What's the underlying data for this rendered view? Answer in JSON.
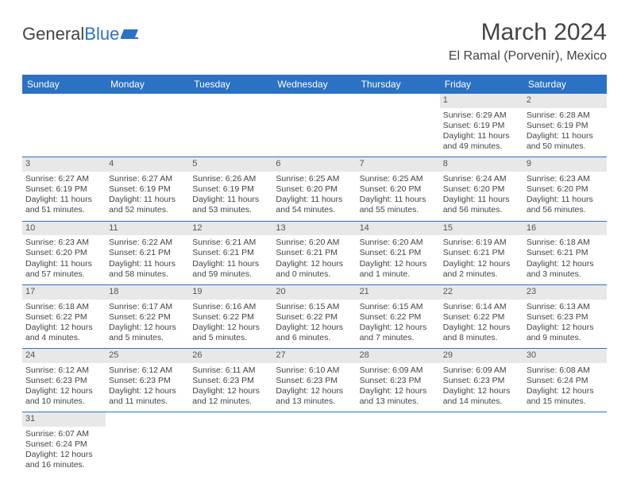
{
  "logo": {
    "general": "General",
    "blue": "Blue"
  },
  "title": "March 2024",
  "subtitle": "El Ramal (Porvenir), Mexico",
  "colors": {
    "header_bg": "#2b72c4",
    "header_fg": "#ffffff",
    "daynum_bg": "#e8e8e8",
    "border": "#2b72c4",
    "text": "#444444"
  },
  "dayNames": [
    "Sunday",
    "Monday",
    "Tuesday",
    "Wednesday",
    "Thursday",
    "Friday",
    "Saturday"
  ],
  "weeks": [
    [
      null,
      null,
      null,
      null,
      null,
      {
        "n": "1",
        "sr": "Sunrise: 6:29 AM",
        "ss": "Sunset: 6:19 PM",
        "d1": "Daylight: 11 hours",
        "d2": "and 49 minutes."
      },
      {
        "n": "2",
        "sr": "Sunrise: 6:28 AM",
        "ss": "Sunset: 6:19 PM",
        "d1": "Daylight: 11 hours",
        "d2": "and 50 minutes."
      }
    ],
    [
      {
        "n": "3",
        "sr": "Sunrise: 6:27 AM",
        "ss": "Sunset: 6:19 PM",
        "d1": "Daylight: 11 hours",
        "d2": "and 51 minutes."
      },
      {
        "n": "4",
        "sr": "Sunrise: 6:27 AM",
        "ss": "Sunset: 6:19 PM",
        "d1": "Daylight: 11 hours",
        "d2": "and 52 minutes."
      },
      {
        "n": "5",
        "sr": "Sunrise: 6:26 AM",
        "ss": "Sunset: 6:19 PM",
        "d1": "Daylight: 11 hours",
        "d2": "and 53 minutes."
      },
      {
        "n": "6",
        "sr": "Sunrise: 6:25 AM",
        "ss": "Sunset: 6:20 PM",
        "d1": "Daylight: 11 hours",
        "d2": "and 54 minutes."
      },
      {
        "n": "7",
        "sr": "Sunrise: 6:25 AM",
        "ss": "Sunset: 6:20 PM",
        "d1": "Daylight: 11 hours",
        "d2": "and 55 minutes."
      },
      {
        "n": "8",
        "sr": "Sunrise: 6:24 AM",
        "ss": "Sunset: 6:20 PM",
        "d1": "Daylight: 11 hours",
        "d2": "and 56 minutes."
      },
      {
        "n": "9",
        "sr": "Sunrise: 6:23 AM",
        "ss": "Sunset: 6:20 PM",
        "d1": "Daylight: 11 hours",
        "d2": "and 56 minutes."
      }
    ],
    [
      {
        "n": "10",
        "sr": "Sunrise: 6:23 AM",
        "ss": "Sunset: 6:20 PM",
        "d1": "Daylight: 11 hours",
        "d2": "and 57 minutes."
      },
      {
        "n": "11",
        "sr": "Sunrise: 6:22 AM",
        "ss": "Sunset: 6:21 PM",
        "d1": "Daylight: 11 hours",
        "d2": "and 58 minutes."
      },
      {
        "n": "12",
        "sr": "Sunrise: 6:21 AM",
        "ss": "Sunset: 6:21 PM",
        "d1": "Daylight: 11 hours",
        "d2": "and 59 minutes."
      },
      {
        "n": "13",
        "sr": "Sunrise: 6:20 AM",
        "ss": "Sunset: 6:21 PM",
        "d1": "Daylight: 12 hours",
        "d2": "and 0 minutes."
      },
      {
        "n": "14",
        "sr": "Sunrise: 6:20 AM",
        "ss": "Sunset: 6:21 PM",
        "d1": "Daylight: 12 hours",
        "d2": "and 1 minute."
      },
      {
        "n": "15",
        "sr": "Sunrise: 6:19 AM",
        "ss": "Sunset: 6:21 PM",
        "d1": "Daylight: 12 hours",
        "d2": "and 2 minutes."
      },
      {
        "n": "16",
        "sr": "Sunrise: 6:18 AM",
        "ss": "Sunset: 6:21 PM",
        "d1": "Daylight: 12 hours",
        "d2": "and 3 minutes."
      }
    ],
    [
      {
        "n": "17",
        "sr": "Sunrise: 6:18 AM",
        "ss": "Sunset: 6:22 PM",
        "d1": "Daylight: 12 hours",
        "d2": "and 4 minutes."
      },
      {
        "n": "18",
        "sr": "Sunrise: 6:17 AM",
        "ss": "Sunset: 6:22 PM",
        "d1": "Daylight: 12 hours",
        "d2": "and 5 minutes."
      },
      {
        "n": "19",
        "sr": "Sunrise: 6:16 AM",
        "ss": "Sunset: 6:22 PM",
        "d1": "Daylight: 12 hours",
        "d2": "and 5 minutes."
      },
      {
        "n": "20",
        "sr": "Sunrise: 6:15 AM",
        "ss": "Sunset: 6:22 PM",
        "d1": "Daylight: 12 hours",
        "d2": "and 6 minutes."
      },
      {
        "n": "21",
        "sr": "Sunrise: 6:15 AM",
        "ss": "Sunset: 6:22 PM",
        "d1": "Daylight: 12 hours",
        "d2": "and 7 minutes."
      },
      {
        "n": "22",
        "sr": "Sunrise: 6:14 AM",
        "ss": "Sunset: 6:22 PM",
        "d1": "Daylight: 12 hours",
        "d2": "and 8 minutes."
      },
      {
        "n": "23",
        "sr": "Sunrise: 6:13 AM",
        "ss": "Sunset: 6:23 PM",
        "d1": "Daylight: 12 hours",
        "d2": "and 9 minutes."
      }
    ],
    [
      {
        "n": "24",
        "sr": "Sunrise: 6:12 AM",
        "ss": "Sunset: 6:23 PM",
        "d1": "Daylight: 12 hours",
        "d2": "and 10 minutes."
      },
      {
        "n": "25",
        "sr": "Sunrise: 6:12 AM",
        "ss": "Sunset: 6:23 PM",
        "d1": "Daylight: 12 hours",
        "d2": "and 11 minutes."
      },
      {
        "n": "26",
        "sr": "Sunrise: 6:11 AM",
        "ss": "Sunset: 6:23 PM",
        "d1": "Daylight: 12 hours",
        "d2": "and 12 minutes."
      },
      {
        "n": "27",
        "sr": "Sunrise: 6:10 AM",
        "ss": "Sunset: 6:23 PM",
        "d1": "Daylight: 12 hours",
        "d2": "and 13 minutes."
      },
      {
        "n": "28",
        "sr": "Sunrise: 6:09 AM",
        "ss": "Sunset: 6:23 PM",
        "d1": "Daylight: 12 hours",
        "d2": "and 13 minutes."
      },
      {
        "n": "29",
        "sr": "Sunrise: 6:09 AM",
        "ss": "Sunset: 6:23 PM",
        "d1": "Daylight: 12 hours",
        "d2": "and 14 minutes."
      },
      {
        "n": "30",
        "sr": "Sunrise: 6:08 AM",
        "ss": "Sunset: 6:24 PM",
        "d1": "Daylight: 12 hours",
        "d2": "and 15 minutes."
      }
    ],
    [
      {
        "n": "31",
        "sr": "Sunrise: 6:07 AM",
        "ss": "Sunset: 6:24 PM",
        "d1": "Daylight: 12 hours",
        "d2": "and 16 minutes."
      },
      null,
      null,
      null,
      null,
      null,
      null
    ]
  ]
}
